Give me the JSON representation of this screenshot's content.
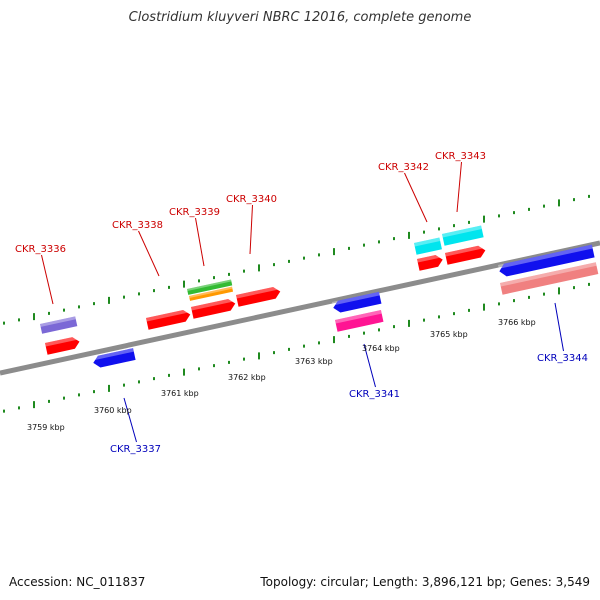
{
  "title": "Clostridium kluyveri NBRC 12016, complete genome",
  "accession_text": "Accession: NC_011837",
  "topology_text": "Topology: circular; Length: 3,896,121 bp; Genes: 3,549",
  "colors": {
    "backbone": "#8c8c8c",
    "tick": "#1f8a1f",
    "label_top": "#cc0000",
    "label_bottom": "#0000bb"
  },
  "scale_labels": [
    "3759 kbp",
    "3760 kbp",
    "3761 kbp",
    "3762 kbp",
    "3763 kbp",
    "3764 kbp",
    "3765 kbp",
    "3766 kbp"
  ],
  "gene_labels": [
    {
      "id": "ckr_3336",
      "text": "CKR_3336",
      "color": "#cc0000"
    },
    {
      "id": "ckr_3337",
      "text": "CKR_3337",
      "color": "#0000bb"
    },
    {
      "id": "ckr_3338",
      "text": "CKR_3338",
      "color": "#cc0000"
    },
    {
      "id": "ckr_3339",
      "text": "CKR_3339",
      "color": "#cc0000"
    },
    {
      "id": "ckr_3340",
      "text": "CKR_3340",
      "color": "#cc0000"
    },
    {
      "id": "ckr_3341",
      "text": "CKR_3341",
      "color": "#0000bb"
    },
    {
      "id": "ckr_3342",
      "text": "CKR_3342",
      "color": "#cc0000"
    },
    {
      "id": "ckr_3343",
      "text": "CKR_3343",
      "color": "#cc0000"
    },
    {
      "id": "ckr_3344",
      "text": "CKR_3344",
      "color": "#0000bb"
    }
  ],
  "features": [
    {
      "id": "f1",
      "color": "#7b68d6"
    },
    {
      "id": "f2",
      "color": "#ff0000"
    },
    {
      "id": "f3",
      "color": "#1010ee"
    },
    {
      "id": "f4",
      "color": "#ff0000"
    },
    {
      "id": "f5",
      "color": "#33bb33"
    },
    {
      "id": "f6",
      "color": "#ff9900"
    },
    {
      "id": "f7",
      "color": "#ff0000"
    },
    {
      "id": "f8",
      "color": "#ff0000"
    },
    {
      "id": "f9",
      "color": "#1010ee"
    },
    {
      "id": "f10",
      "color": "#ff1493"
    },
    {
      "id": "f11",
      "color": "#00e5ee"
    },
    {
      "id": "f12",
      "color": "#00e5ee"
    },
    {
      "id": "f13",
      "color": "#ff0000"
    },
    {
      "id": "f14",
      "color": "#ff0000"
    },
    {
      "id": "f15",
      "color": "#1010ee"
    },
    {
      "id": "f16",
      "color": "#f08080"
    }
  ]
}
